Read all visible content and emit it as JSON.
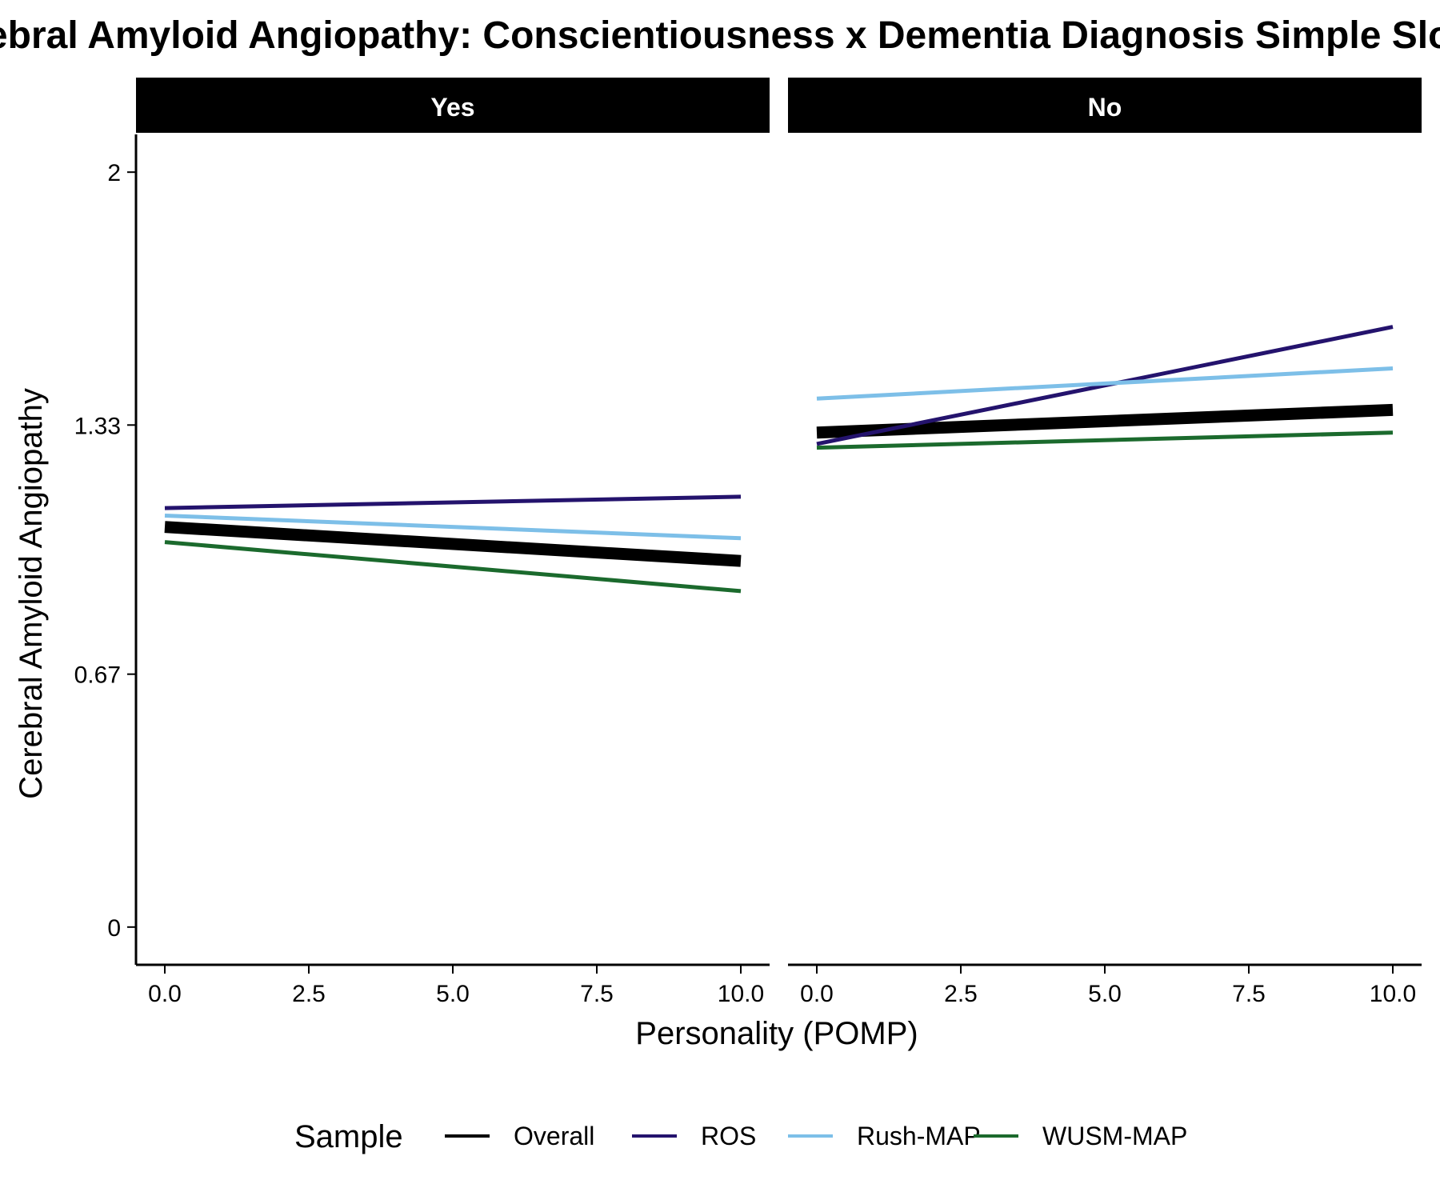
{
  "chart_data": {
    "type": "line",
    "title": "Cerebral Amyloid Angiopathy: Conscientiousness x Dementia Diagnosis Simple Slopes",
    "xlabel": "Personality (POMP)",
    "ylabel": "Cerebral Amyloid Angiopathy",
    "xlim": [
      -0.5,
      10.5
    ],
    "ylim": [
      -0.1,
      2.1
    ],
    "x_ticks": [
      0,
      2.5,
      5,
      7.5,
      10
    ],
    "x_tick_labels": [
      "0.0",
      "2.5",
      "5.0",
      "7.5",
      "10.0"
    ],
    "y_ticks": [
      0,
      0.67,
      1.33,
      2
    ],
    "y_tick_labels": [
      "0",
      "0.67",
      "1.33",
      "2"
    ],
    "grid": false,
    "legend": {
      "title": "Sample",
      "position": "bottom",
      "entries": [
        "Overall",
        "ROS",
        "Rush-MAP",
        "WUSM-MAP"
      ]
    },
    "colors": {
      "Overall": "#000000",
      "ROS": "#24136d",
      "Rush-MAP": "#7dbfe8",
      "WUSM-MAP": "#1b6a2d"
    },
    "panels": [
      {
        "label": "Yes",
        "series": [
          {
            "name": "Overall",
            "x": [
              0,
              10
            ],
            "y": [
              1.06,
              0.97
            ]
          },
          {
            "name": "ROS",
            "x": [
              0,
              10
            ],
            "y": [
              1.11,
              1.14
            ]
          },
          {
            "name": "Rush-MAP",
            "x": [
              0,
              10
            ],
            "y": [
              1.09,
              1.03
            ]
          },
          {
            "name": "WUSM-MAP",
            "x": [
              0,
              10
            ],
            "y": [
              1.02,
              0.89
            ]
          }
        ]
      },
      {
        "label": "No",
        "series": [
          {
            "name": "Overall",
            "x": [
              0,
              10
            ],
            "y": [
              1.31,
              1.37
            ]
          },
          {
            "name": "ROS",
            "x": [
              0,
              10
            ],
            "y": [
              1.28,
              1.59
            ]
          },
          {
            "name": "Rush-MAP",
            "x": [
              0,
              10
            ],
            "y": [
              1.4,
              1.48
            ]
          },
          {
            "name": "WUSM-MAP",
            "x": [
              0,
              10
            ],
            "y": [
              1.27,
              1.31
            ]
          }
        ]
      }
    ]
  }
}
